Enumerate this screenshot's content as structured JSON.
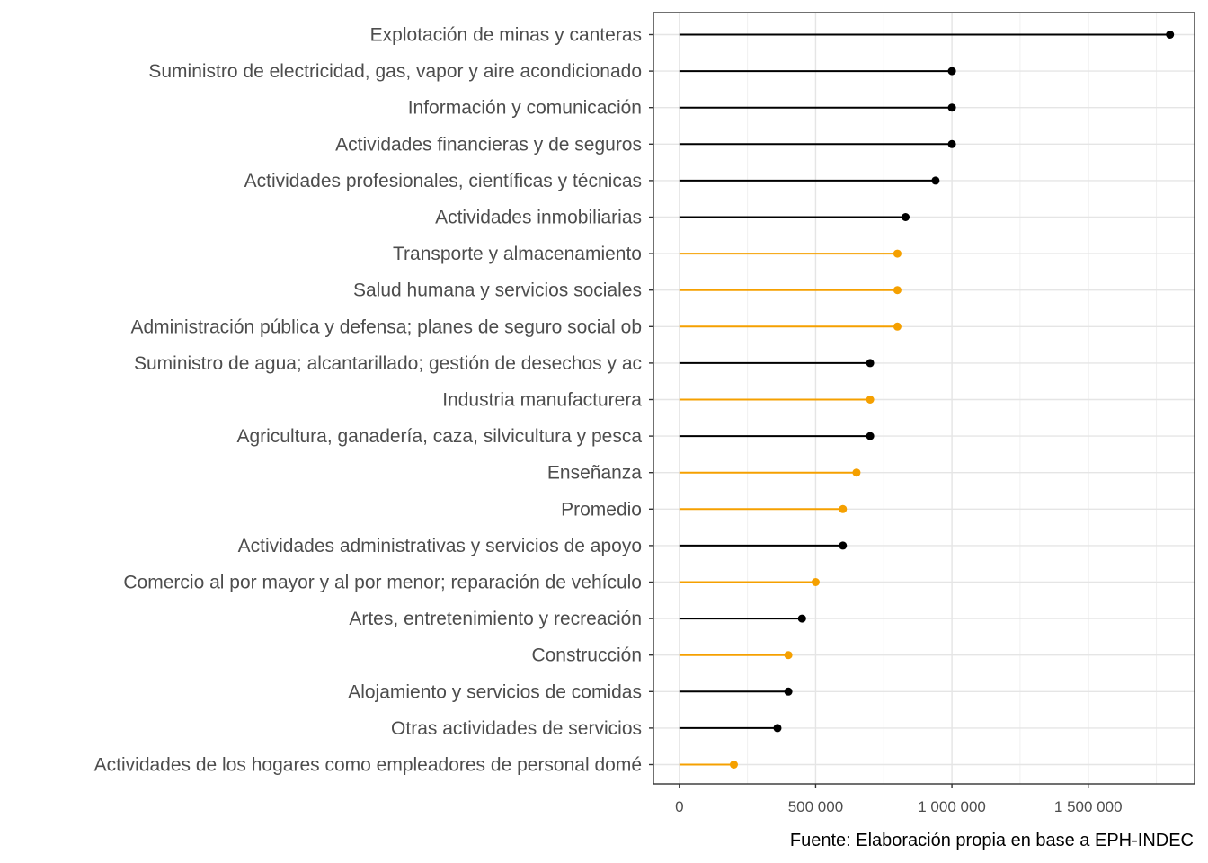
{
  "chart_data": {
    "type": "lollipop",
    "orientation": "horizontal",
    "categories": [
      "Explotación de minas y canteras",
      "Suministro de electricidad, gas, vapor y aire acondicionado",
      "Información y comunicación",
      "Actividades financieras y de seguros",
      "Actividades profesionales, científicas y técnicas",
      "Actividades inmobiliarias",
      "Transporte y almacenamiento",
      "Salud humana y servicios sociales",
      "Administración pública y defensa; planes de seguro social ob",
      "Suministro de agua; alcantarillado; gestión de desechos y ac",
      "Industria manufacturera",
      "Agricultura, ganadería, caza, silvicultura y pesca",
      "Enseñanza",
      "Promedio",
      "Actividades administrativas y servicios de apoyo",
      "Comercio al por mayor y al por menor; reparación de vehículo",
      "Artes, entretenimiento y recreación",
      "Construcción",
      "Alojamiento y servicios de comidas",
      "Otras actividades de servicios",
      "Actividades de los hogares como empleadores de personal domé"
    ],
    "values": [
      1800000,
      1000000,
      1000000,
      1000000,
      940000,
      830000,
      800000,
      800000,
      800000,
      700000,
      700000,
      700000,
      650000,
      600000,
      600000,
      500000,
      450000,
      400000,
      400000,
      360000,
      200000
    ],
    "groups": [
      "black",
      "black",
      "black",
      "black",
      "black",
      "black",
      "orange",
      "orange",
      "orange",
      "black",
      "orange",
      "black",
      "orange",
      "orange",
      "black",
      "orange",
      "black",
      "orange",
      "black",
      "black",
      "orange"
    ],
    "colors": {
      "black": "#000000",
      "orange": "#f5a000"
    },
    "xlim": [
      -95000,
      1890000
    ],
    "xticks": [
      0,
      500000,
      1000000,
      1500000
    ],
    "xtick_labels": [
      "0",
      "500 000",
      "1 000 000",
      "1 500 000"
    ],
    "grid": true,
    "caption": "Fuente: Elaboración propia en base a EPH-INDEC"
  }
}
